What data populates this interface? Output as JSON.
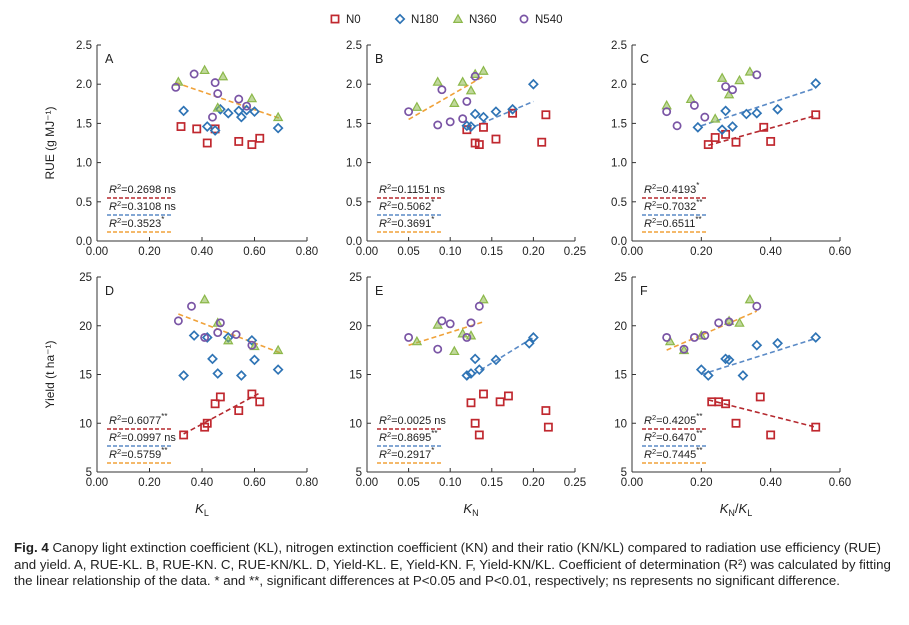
{
  "legend": [
    {
      "name": "N0",
      "marker": "square",
      "color": "#c0282f"
    },
    {
      "name": "N180",
      "marker": "diamond",
      "color": "#2f74b5"
    },
    {
      "name": "N360",
      "marker": "triangle",
      "color": "#8cb84a"
    },
    {
      "name": "N540",
      "marker": "circle",
      "color": "#7a55a5"
    }
  ],
  "fit_colors": {
    "N0": "#b5292f",
    "N180": "#5a8ac6",
    "N360": "#f0a23a"
  },
  "chart_data": [
    {
      "type": "scatter",
      "panel": "A",
      "xlabel": "",
      "ylabel": "RUE (g MJ⁻¹)",
      "xlim": [
        0,
        0.8
      ],
      "xticks": [
        "0.00",
        "0.20",
        "0.40",
        "0.60",
        "0.80"
      ],
      "ylim": [
        0,
        2.5
      ],
      "yticks": [
        "0.0",
        "0.5",
        "1.0",
        "1.5",
        "2.0",
        "2.5"
      ],
      "series": [
        {
          "name": "N0",
          "x": [
            0.32,
            0.38,
            0.42,
            0.45,
            0.54,
            0.59,
            0.62
          ],
          "y": [
            1.46,
            1.43,
            1.25,
            1.43,
            1.27,
            1.23,
            1.31
          ]
        },
        {
          "name": "N180",
          "x": [
            0.33,
            0.42,
            0.45,
            0.47,
            0.5,
            0.54,
            0.55,
            0.57,
            0.6,
            0.69
          ],
          "y": [
            1.66,
            1.46,
            1.41,
            1.68,
            1.63,
            1.66,
            1.58,
            1.67,
            1.65,
            1.44
          ]
        },
        {
          "name": "N360",
          "x": [
            0.31,
            0.41,
            0.46,
            0.48,
            0.59,
            0.69
          ],
          "y": [
            2.03,
            2.18,
            1.7,
            2.1,
            1.82,
            1.58
          ]
        },
        {
          "name": "N540",
          "x": [
            0.3,
            0.37,
            0.44,
            0.45,
            0.46,
            0.54,
            0.57
          ],
          "y": [
            1.96,
            2.13,
            1.58,
            2.02,
            1.88,
            1.81,
            1.72
          ]
        }
      ],
      "fits": [
        {
          "series": "N360",
          "x": [
            0.3,
            0.7
          ],
          "y": [
            2.02,
            1.56
          ]
        }
      ],
      "annotations": [
        {
          "series": "N0",
          "text": "R²=0.2698 ns"
        },
        {
          "series": "N180",
          "text": "R²=0.3108 ns"
        },
        {
          "series": "N360",
          "text": "R²=0.3523*"
        }
      ]
    },
    {
      "type": "scatter",
      "panel": "B",
      "xlabel": "",
      "ylabel": "",
      "xlim": [
        0,
        0.25
      ],
      "xticks": [
        "0.00",
        "0.05",
        "0.10",
        "0.15",
        "0.20",
        "0.25"
      ],
      "ylim": [
        0,
        2.5
      ],
      "yticks": [
        "0.0",
        "0.5",
        "1.0",
        "1.5",
        "2.0",
        "2.5"
      ],
      "series": [
        {
          "name": "N0",
          "x": [
            0.12,
            0.13,
            0.135,
            0.14,
            0.155,
            0.175,
            0.21,
            0.215
          ],
          "y": [
            1.42,
            1.25,
            1.23,
            1.45,
            1.3,
            1.63,
            1.26,
            1.61
          ]
        },
        {
          "name": "N180",
          "x": [
            0.12,
            0.125,
            0.13,
            0.14,
            0.155,
            0.175,
            0.2
          ],
          "y": [
            1.47,
            1.46,
            1.62,
            1.58,
            1.65,
            1.68,
            2.0
          ]
        },
        {
          "name": "N360",
          "x": [
            0.06,
            0.085,
            0.105,
            0.115,
            0.125,
            0.13,
            0.14
          ],
          "y": [
            1.71,
            2.03,
            1.76,
            2.03,
            1.92,
            2.13,
            2.17
          ]
        },
        {
          "name": "N540",
          "x": [
            0.05,
            0.085,
            0.09,
            0.1,
            0.115,
            0.12,
            0.13
          ],
          "y": [
            1.65,
            1.48,
            1.93,
            1.52,
            1.56,
            1.78,
            2.1
          ]
        }
      ],
      "fits": [
        {
          "series": "N360",
          "x": [
            0.05,
            0.14
          ],
          "y": [
            1.55,
            2.1
          ]
        },
        {
          "series": "N180",
          "x": [
            0.12,
            0.2
          ],
          "y": [
            1.42,
            1.78
          ]
        }
      ],
      "annotations": [
        {
          "series": "N0",
          "text": "R²=0.1151 ns"
        },
        {
          "series": "N180",
          "text": "R²=0.5062*"
        },
        {
          "series": "N360",
          "text": "R²=0.3691*"
        }
      ]
    },
    {
      "type": "scatter",
      "panel": "C",
      "xlabel": "",
      "ylabel": "",
      "xlim": [
        0,
        0.6
      ],
      "xticks": [
        "0.00",
        "0.20",
        "0.40",
        "0.60"
      ],
      "ylim": [
        0,
        2.5
      ],
      "yticks": [
        "0.0",
        "0.5",
        "1.0",
        "1.5",
        "2.0",
        "2.5"
      ],
      "series": [
        {
          "name": "N0",
          "x": [
            0.22,
            0.24,
            0.27,
            0.3,
            0.38,
            0.4,
            0.53
          ],
          "y": [
            1.23,
            1.32,
            1.36,
            1.26,
            1.45,
            1.27,
            1.61
          ]
        },
        {
          "name": "N180",
          "x": [
            0.19,
            0.26,
            0.27,
            0.29,
            0.33,
            0.36,
            0.42,
            0.53
          ],
          "y": [
            1.45,
            1.42,
            1.66,
            1.46,
            1.62,
            1.63,
            1.68,
            2.01
          ]
        },
        {
          "name": "N360",
          "x": [
            0.1,
            0.17,
            0.24,
            0.26,
            0.28,
            0.31,
            0.34
          ],
          "y": [
            1.73,
            1.81,
            1.56,
            2.08,
            1.87,
            2.05,
            2.16
          ]
        },
        {
          "name": "N540",
          "x": [
            0.1,
            0.13,
            0.18,
            0.21,
            0.27,
            0.29,
            0.36
          ],
          "y": [
            1.65,
            1.47,
            1.73,
            1.58,
            1.97,
            1.93,
            2.12
          ]
        }
      ],
      "fits": [
        {
          "series": "N540",
          "x": [
            0.1,
            0.36
          ],
          "y": [
            1.55,
            2.08
          ]
        },
        {
          "series": "N180",
          "x": [
            0.2,
            0.53
          ],
          "y": [
            1.47,
            1.95
          ]
        },
        {
          "series": "N0",
          "x": [
            0.22,
            0.53
          ],
          "y": [
            1.22,
            1.6
          ]
        }
      ],
      "annotations": [
        {
          "series": "N0",
          "text": "R²=0.4193*"
        },
        {
          "series": "N180",
          "text": "R²=0.7032**"
        },
        {
          "series": "N360",
          "text": "R²=0.6511**"
        }
      ]
    },
    {
      "type": "scatter",
      "panel": "D",
      "xlabel": "KL",
      "ylabel": "Yield (t ha⁻¹)",
      "xlim": [
        0,
        0.8
      ],
      "xticks": [
        "0.00",
        "0.20",
        "0.40",
        "0.60",
        "0.80"
      ],
      "ylim": [
        5,
        25
      ],
      "yticks": [
        "5",
        "10",
        "15",
        "20",
        "25"
      ],
      "series": [
        {
          "name": "N0",
          "x": [
            0.33,
            0.41,
            0.42,
            0.45,
            0.47,
            0.54,
            0.59,
            0.62
          ],
          "y": [
            8.8,
            9.6,
            10.0,
            12.0,
            12.7,
            11.3,
            13.0,
            12.2
          ]
        },
        {
          "name": "N180",
          "x": [
            0.33,
            0.37,
            0.42,
            0.44,
            0.46,
            0.5,
            0.55,
            0.59,
            0.6,
            0.69
          ],
          "y": [
            14.9,
            19.0,
            18.8,
            16.6,
            15.1,
            18.8,
            14.9,
            18.5,
            16.5,
            15.5
          ]
        },
        {
          "name": "N360",
          "x": [
            0.41,
            0.46,
            0.5,
            0.6,
            0.69
          ],
          "y": [
            22.7,
            20.3,
            18.5,
            17.9,
            17.5
          ]
        },
        {
          "name": "N540",
          "x": [
            0.31,
            0.36,
            0.41,
            0.46,
            0.47,
            0.53,
            0.59
          ],
          "y": [
            20.5,
            22.0,
            18.8,
            19.3,
            20.3,
            19.1,
            18.0
          ]
        }
      ],
      "fits": [
        {
          "series": "N360",
          "x": [
            0.31,
            0.7
          ],
          "y": [
            21.2,
            17.2
          ]
        },
        {
          "series": "N0",
          "x": [
            0.33,
            0.62
          ],
          "y": [
            8.9,
            13.1
          ]
        }
      ],
      "annotations": [
        {
          "series": "N0",
          "text": "R²=0.6077**"
        },
        {
          "series": "N180",
          "text": "R²=0.0997 ns"
        },
        {
          "series": "N360",
          "text": "R²=0.5759**"
        }
      ]
    },
    {
      "type": "scatter",
      "panel": "E",
      "xlabel": "KN",
      "ylabel": "",
      "xlim": [
        0,
        0.25
      ],
      "xticks": [
        "0.00",
        "0.05",
        "0.10",
        "0.15",
        "0.20",
        "0.25"
      ],
      "ylim": [
        5,
        25
      ],
      "yticks": [
        "5",
        "10",
        "15",
        "20",
        "25"
      ],
      "series": [
        {
          "name": "N0",
          "x": [
            0.125,
            0.13,
            0.135,
            0.14,
            0.16,
            0.17,
            0.215,
            0.218
          ],
          "y": [
            12.1,
            10.0,
            8.8,
            13.0,
            12.2,
            12.8,
            11.3,
            9.6
          ]
        },
        {
          "name": "N180",
          "x": [
            0.12,
            0.125,
            0.13,
            0.135,
            0.155,
            0.195,
            0.2
          ],
          "y": [
            14.9,
            15.1,
            16.6,
            15.5,
            16.5,
            18.2,
            18.8
          ]
        },
        {
          "name": "N360",
          "x": [
            0.06,
            0.085,
            0.105,
            0.115,
            0.125,
            0.14
          ],
          "y": [
            18.4,
            20.1,
            17.4,
            19.2,
            19.0,
            22.7
          ]
        },
        {
          "name": "N540",
          "x": [
            0.05,
            0.085,
            0.09,
            0.1,
            0.12,
            0.125,
            0.135
          ],
          "y": [
            18.8,
            17.6,
            20.5,
            20.2,
            18.8,
            20.3,
            22.0
          ]
        }
      ],
      "fits": [
        {
          "series": "N360",
          "x": [
            0.05,
            0.14
          ],
          "y": [
            18.0,
            20.4
          ]
        },
        {
          "series": "N180",
          "x": [
            0.12,
            0.2
          ],
          "y": [
            14.6,
            18.8
          ]
        }
      ],
      "annotations": [
        {
          "series": "N0",
          "text": "R²=0.0025 ns"
        },
        {
          "series": "N180",
          "text": "R²=0.8695**"
        },
        {
          "series": "N360",
          "text": "R²=0.2917*"
        }
      ]
    },
    {
      "type": "scatter",
      "panel": "F",
      "xlabel": "KN/KL",
      "ylabel": "",
      "xlim": [
        0,
        0.6
      ],
      "xticks": [
        "0.00",
        "0.20",
        "0.40",
        "0.60"
      ],
      "ylim": [
        5,
        25
      ],
      "yticks": [
        "5",
        "10",
        "15",
        "20",
        "25"
      ],
      "series": [
        {
          "name": "N0",
          "x": [
            0.23,
            0.25,
            0.27,
            0.3,
            0.37,
            0.4,
            0.53
          ],
          "y": [
            12.2,
            12.2,
            12.0,
            10.0,
            12.7,
            8.8,
            9.6
          ]
        },
        {
          "name": "N180",
          "x": [
            0.2,
            0.22,
            0.27,
            0.28,
            0.32,
            0.36,
            0.42,
            0.53
          ],
          "y": [
            15.5,
            14.9,
            16.6,
            16.5,
            14.9,
            18.0,
            18.2,
            18.8
          ]
        },
        {
          "name": "N360",
          "x": [
            0.11,
            0.15,
            0.2,
            0.28,
            0.31,
            0.34
          ],
          "y": [
            18.4,
            17.5,
            19.0,
            20.5,
            20.3,
            22.7
          ]
        },
        {
          "name": "N540",
          "x": [
            0.1,
            0.15,
            0.18,
            0.21,
            0.25,
            0.28,
            0.36
          ],
          "y": [
            18.8,
            17.6,
            18.8,
            19.0,
            20.3,
            20.4,
            22.0
          ]
        }
      ],
      "fits": [
        {
          "series": "N360",
          "x": [
            0.1,
            0.36
          ],
          "y": [
            17.5,
            21.5
          ]
        },
        {
          "series": "N180",
          "x": [
            0.2,
            0.53
          ],
          "y": [
            15.0,
            18.7
          ]
        },
        {
          "series": "N0",
          "x": [
            0.22,
            0.53
          ],
          "y": [
            12.4,
            9.6
          ]
        }
      ],
      "annotations": [
        {
          "series": "N0",
          "text": "R²=0.4205**"
        },
        {
          "series": "N180",
          "text": "R²=0.6470**"
        },
        {
          "series": "N360",
          "text": "R²=0.7445**"
        }
      ]
    }
  ],
  "caption": {
    "label": "Fig. 4",
    "text": "Canopy light extinction coefficient (KL), nitrogen extinction coefficient (KN) and their ratio (KN/KL) compared to radiation use efficiency (RUE) and yield.  A, RUE-KL.  B, RUE-KN.  C, RUE-KN/KL.  D, Yield-KL.  E, Yield-KN.  F, Yield-KN/KL.  Coefficient of determination (R²) was calculated by fitting the linear relationship of the data.  * and **, significant differences at P<0.05 and P<0.01, respectively; ns represents no significant difference."
  }
}
